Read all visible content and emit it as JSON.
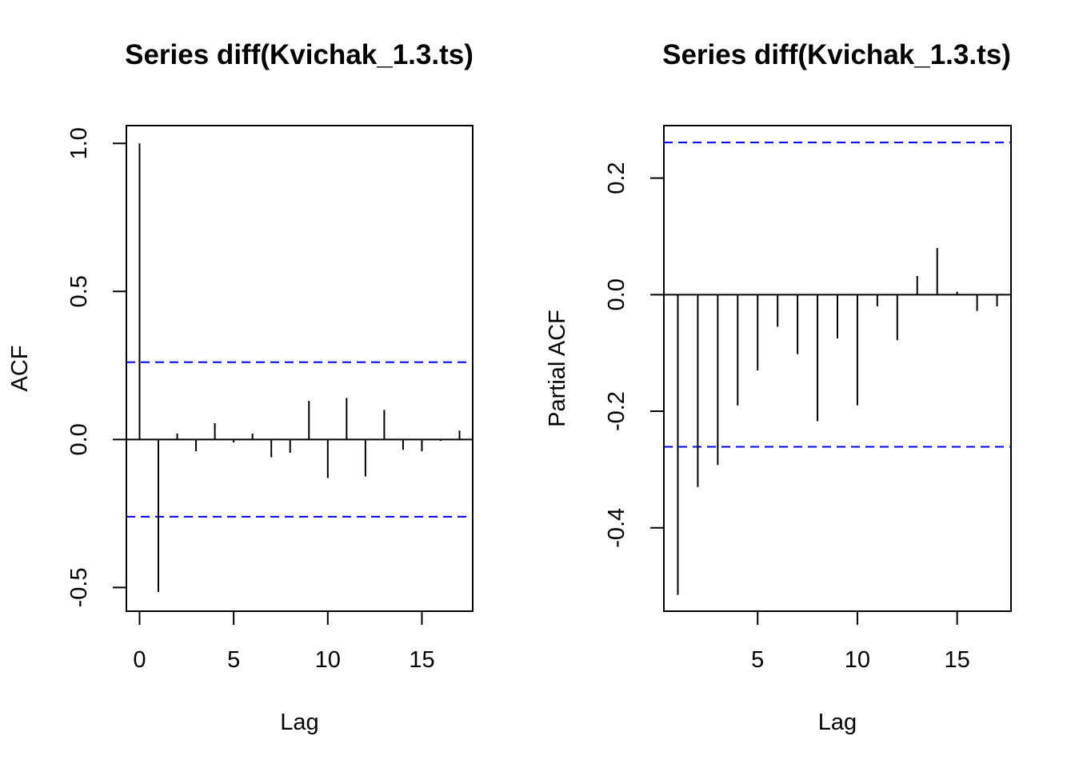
{
  "chart_data": [
    {
      "type": "bar",
      "title": "Series  diff(Kvichak_1.3.ts)",
      "xlabel": "Lag",
      "ylabel": "ACF",
      "x": [
        0,
        1,
        2,
        3,
        4,
        5,
        6,
        7,
        8,
        9,
        10,
        11,
        12,
        13,
        14,
        15,
        16,
        17
      ],
      "values": [
        1.0,
        -0.515,
        0.02,
        -0.04,
        0.055,
        -0.01,
        0.02,
        -0.06,
        -0.045,
        0.13,
        -0.13,
        0.14,
        -0.125,
        0.1,
        -0.035,
        -0.04,
        -0.005,
        0.03
      ],
      "xlim": [
        -0.7,
        17.7
      ],
      "ylim": [
        -0.58,
        1.06
      ],
      "xticks": [
        "0",
        "5",
        "10",
        "15"
      ],
      "yticks": [
        "-0.5",
        "0.0",
        "0.5",
        "1.0"
      ],
      "ci": 0.261,
      "ci_color": "#0000ff",
      "grid": false
    },
    {
      "type": "bar",
      "title": "Series  diff(Kvichak_1.3.ts)",
      "xlabel": "Lag",
      "ylabel": "Partial ACF",
      "x": [
        1,
        2,
        3,
        4,
        5,
        6,
        7,
        8,
        9,
        10,
        11,
        12,
        13,
        14,
        15,
        16,
        17
      ],
      "values": [
        -0.515,
        -0.33,
        -0.292,
        -0.19,
        -0.13,
        -0.055,
        -0.102,
        -0.217,
        -0.075,
        -0.19,
        -0.02,
        -0.078,
        0.032,
        0.08,
        0.005,
        -0.028,
        -0.02
      ],
      "xlim": [
        0.3,
        17.7
      ],
      "ylim": [
        -0.543,
        0.29
      ],
      "xticks": [
        "5",
        "10",
        "15"
      ],
      "yticks": [
        "-0.4",
        "-0.2",
        "0.0",
        "0.2"
      ],
      "ci": 0.261,
      "ci_color": "#0000ff",
      "grid": false
    }
  ]
}
